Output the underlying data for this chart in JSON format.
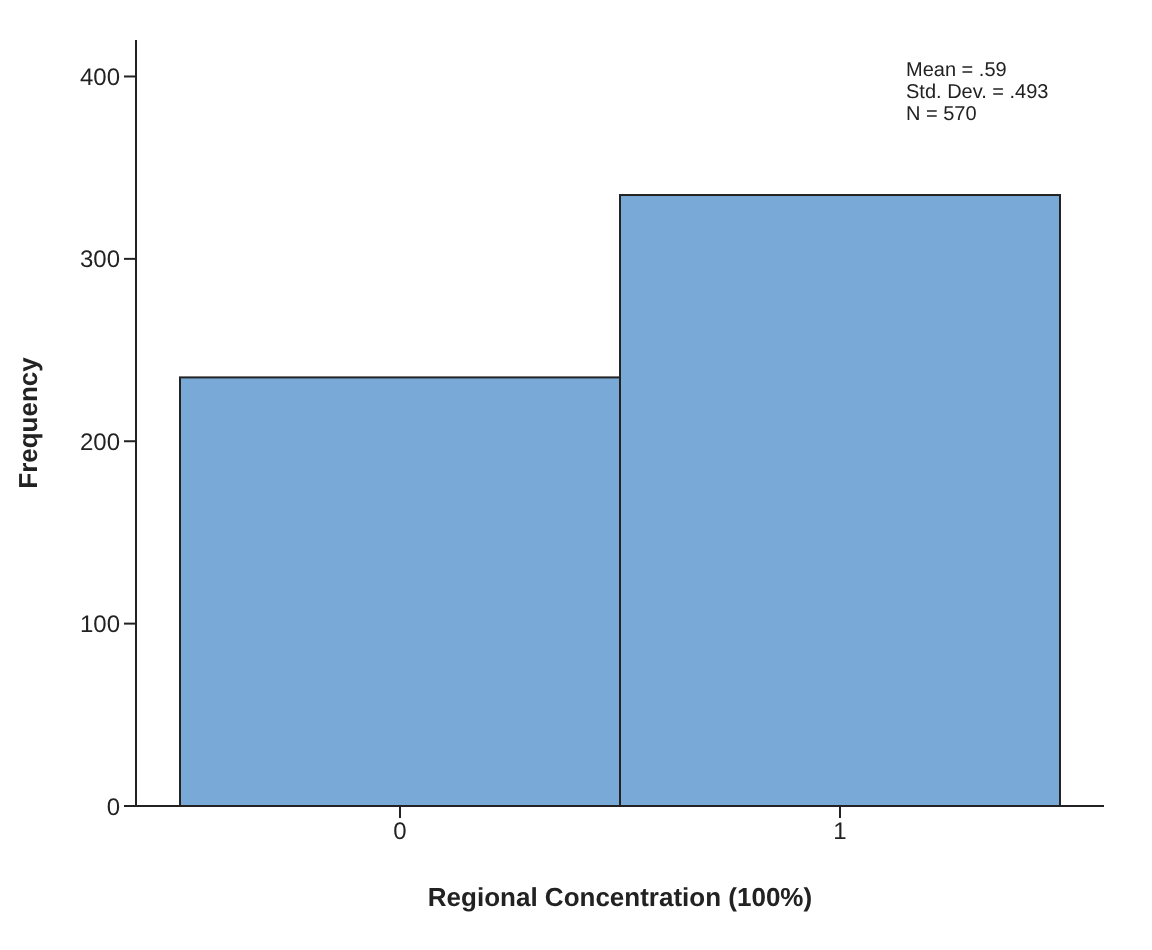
{
  "chart_data": {
    "type": "histogram",
    "xlabel": "Regional Concentration (100%)",
    "ylabel": "Frequency",
    "bins": [
      -0.5,
      0.5,
      1.5
    ],
    "values": [
      235,
      335
    ],
    "color": "#79a9d6",
    "xlim": [
      -0.6,
      1.6
    ],
    "xticks": [
      0,
      1
    ],
    "ylim": [
      0,
      420
    ],
    "yticks": [
      0,
      100,
      200,
      300,
      400
    ],
    "annotations": [
      "Mean = .59",
      "Std. Dev. = .493",
      "N = 570"
    ]
  }
}
